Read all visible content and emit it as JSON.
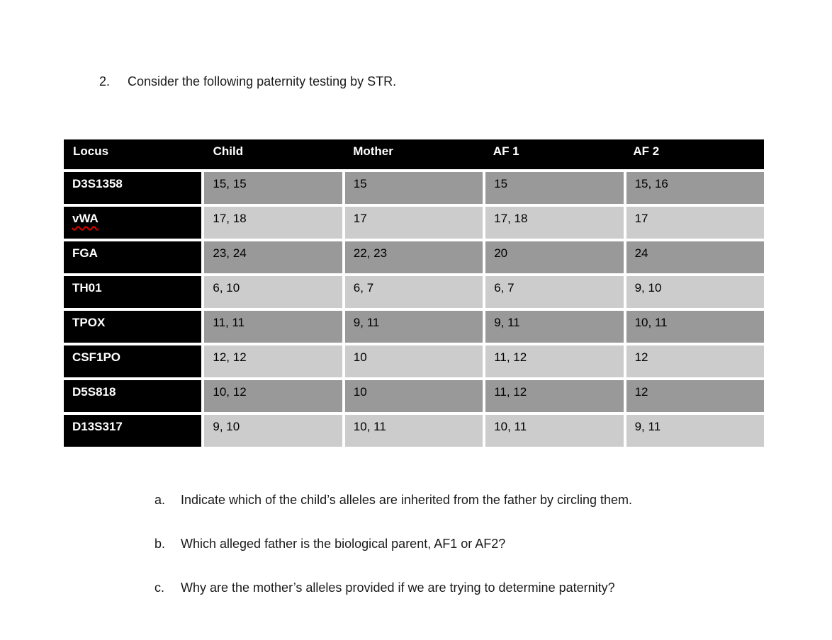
{
  "title": {
    "number": "2.",
    "text": "Consider the following paternity testing by STR."
  },
  "table": {
    "columns": [
      "Locus",
      "Child",
      "Mother",
      "AF 1",
      "AF 2"
    ],
    "rows": [
      {
        "locus": "D3S1358",
        "child": "15, 15",
        "mother": "15",
        "af1": "15",
        "af2": "15, 16",
        "shade": "dark"
      },
      {
        "locus": "vWA",
        "child": "17, 18",
        "mother": "17",
        "af1": "17, 18",
        "af2": "17",
        "shade": "light",
        "spellcheck_underlined": true
      },
      {
        "locus": "FGA",
        "child": "23, 24",
        "mother": "22, 23",
        "af1": "20",
        "af2": "24",
        "shade": "dark"
      },
      {
        "locus": "TH01",
        "child": "6, 10",
        "mother": "6, 7",
        "af1": "6, 7",
        "af2": "9, 10",
        "shade": "light"
      },
      {
        "locus": "TPOX",
        "child": "11, 11",
        "mother": "9, 11",
        "af1": "9, 11",
        "af2": "10, 11",
        "shade": "dark"
      },
      {
        "locus": "CSF1PO",
        "child": "12, 12",
        "mother": "10",
        "af1": "11, 12",
        "af2": "12",
        "shade": "light"
      },
      {
        "locus": "D5S818",
        "child": "10, 12",
        "mother": "10",
        "af1": "11, 12",
        "af2": "12",
        "shade": "dark"
      },
      {
        "locus": "D13S317",
        "child": "9, 10",
        "mother": "10, 11",
        "af1": "10, 11",
        "af2": "9, 11",
        "shade": "light"
      }
    ]
  },
  "questions": [
    {
      "letter": "a.",
      "text": "Indicate which of the child’s alleles are inherited from the father by circling them."
    },
    {
      "letter": "b.",
      "text": "Which alleged father is the biological parent, AF1 or AF2?"
    },
    {
      "letter": "c.",
      "text": "Why are the mother’s alleles provided if we are trying to determine paternity?"
    }
  ],
  "colors": {
    "header_bg": "#000000",
    "row_dark": "#999999",
    "row_light": "#cccccc",
    "spellcheck_underline": "#e00000",
    "text": "#1a1a1a"
  }
}
